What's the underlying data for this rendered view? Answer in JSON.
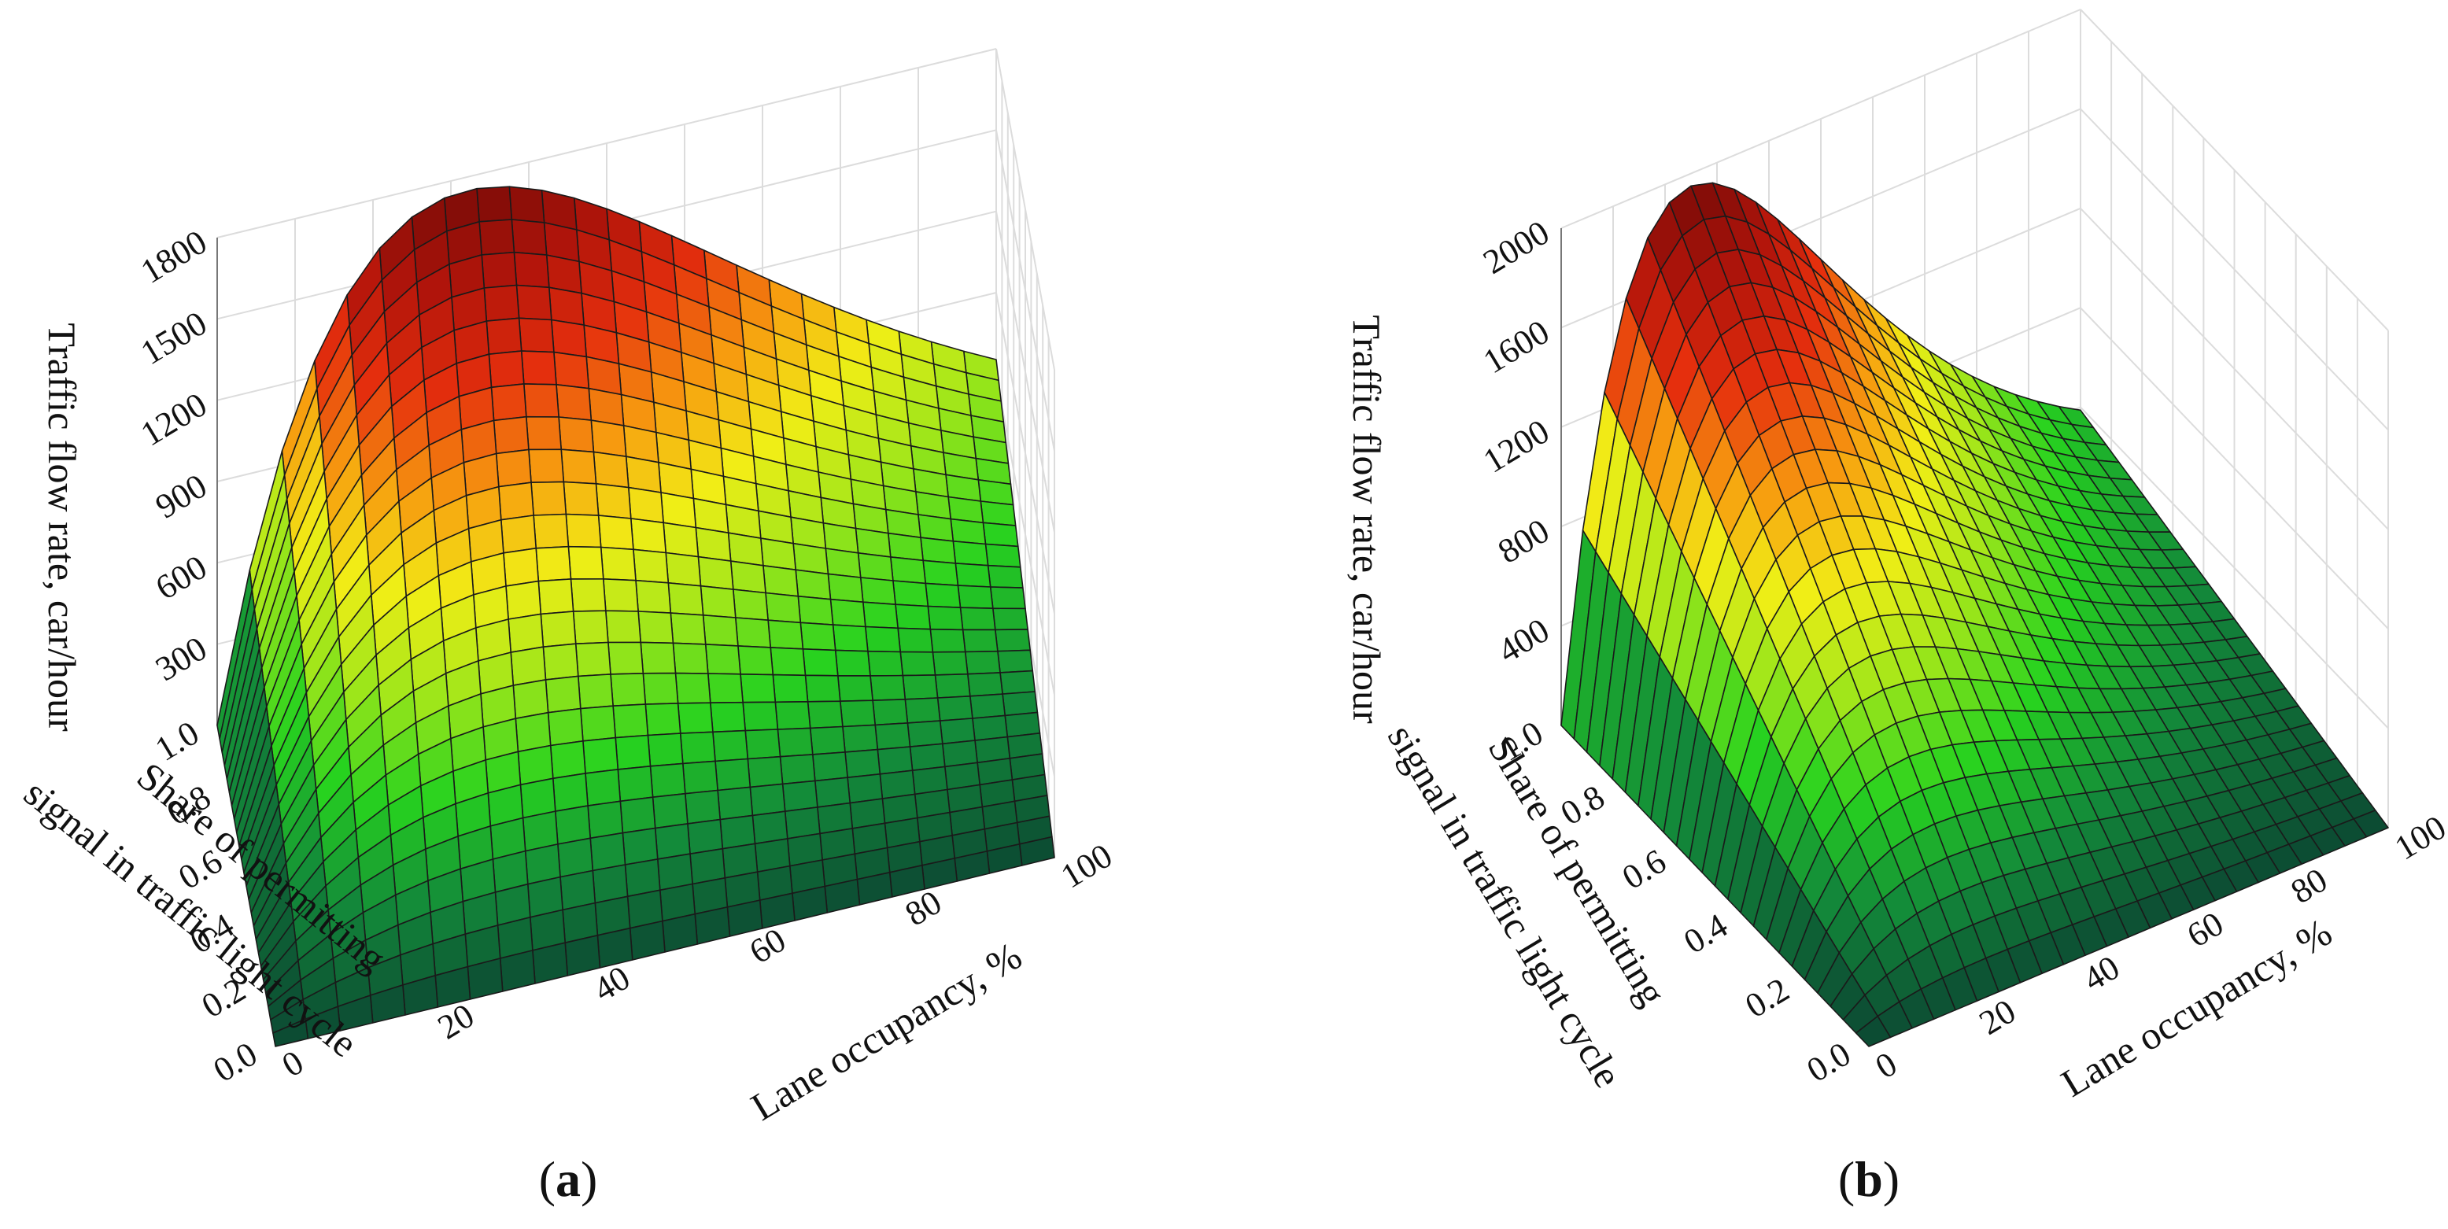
{
  "figure": {
    "panels": [
      {
        "label_parts": [
          "(",
          "a",
          ")"
        ]
      },
      {
        "label_parts": [
          "(",
          "b",
          ")"
        ]
      }
    ]
  },
  "chart_data": [
    {
      "type": "surface3d",
      "panel": "a",
      "zlabel": "Traffic flow rate, car/hour",
      "xlabel": "Lane occupancy, %",
      "ylabel_lines": [
        "Share of permitting",
        "signal in traffic light cycle"
      ],
      "x_ticks": [
        "0",
        "20",
        "40",
        "60",
        "80",
        "100"
      ],
      "y_ticks": [
        "0.0",
        "0.2",
        "0.4",
        "0.6",
        "0.8",
        "1.0"
      ],
      "z_ticks": [
        "300",
        "600",
        "900",
        "1200",
        "1500",
        "1800"
      ],
      "xlim": [
        0,
        100
      ],
      "ylim": [
        0,
        1
      ],
      "zlim": [
        0,
        1800
      ],
      "peak": {
        "occupancy": 32,
        "share": 1.0,
        "flow": 1750
      },
      "model": "flow = peak_flow * share * (occupancy/32) * exp(1 - occupancy/32)",
      "colormap": [
        "#0c4a33",
        "#138a3a",
        "#27d21f",
        "#9ee61a",
        "#f1ee16",
        "#f79b0f",
        "#e52f0d",
        "#b3150b",
        "#7a0b07"
      ]
    },
    {
      "type": "surface3d",
      "panel": "b",
      "zlabel": "Traffic flow rate, car/hour",
      "xlabel": "Lane occupancy, %",
      "ylabel_lines": [
        "Share of permitting",
        "signal in traffic light cycle"
      ],
      "x_ticks": [
        "0",
        "20",
        "40",
        "60",
        "80",
        "100"
      ],
      "y_ticks": [
        "0.0",
        "0.2",
        "0.4",
        "0.6",
        "0.8",
        "1.0"
      ],
      "z_ticks": [
        "400",
        "800",
        "1200",
        "1600",
        "2000"
      ],
      "xlim": [
        0,
        100
      ],
      "ylim": [
        0,
        1
      ],
      "zlim": [
        0,
        2000
      ],
      "peak": {
        "occupancy": 25,
        "share": 1.0,
        "flow": 1950
      },
      "model": "flow = peak_flow * share * (occupancy/25) * exp(1 - occupancy/25)",
      "colormap": [
        "#0c4a33",
        "#138a3a",
        "#27d21f",
        "#9ee61a",
        "#f1ee16",
        "#f79b0f",
        "#e52f0d",
        "#b3150b",
        "#7a0b07"
      ]
    }
  ]
}
